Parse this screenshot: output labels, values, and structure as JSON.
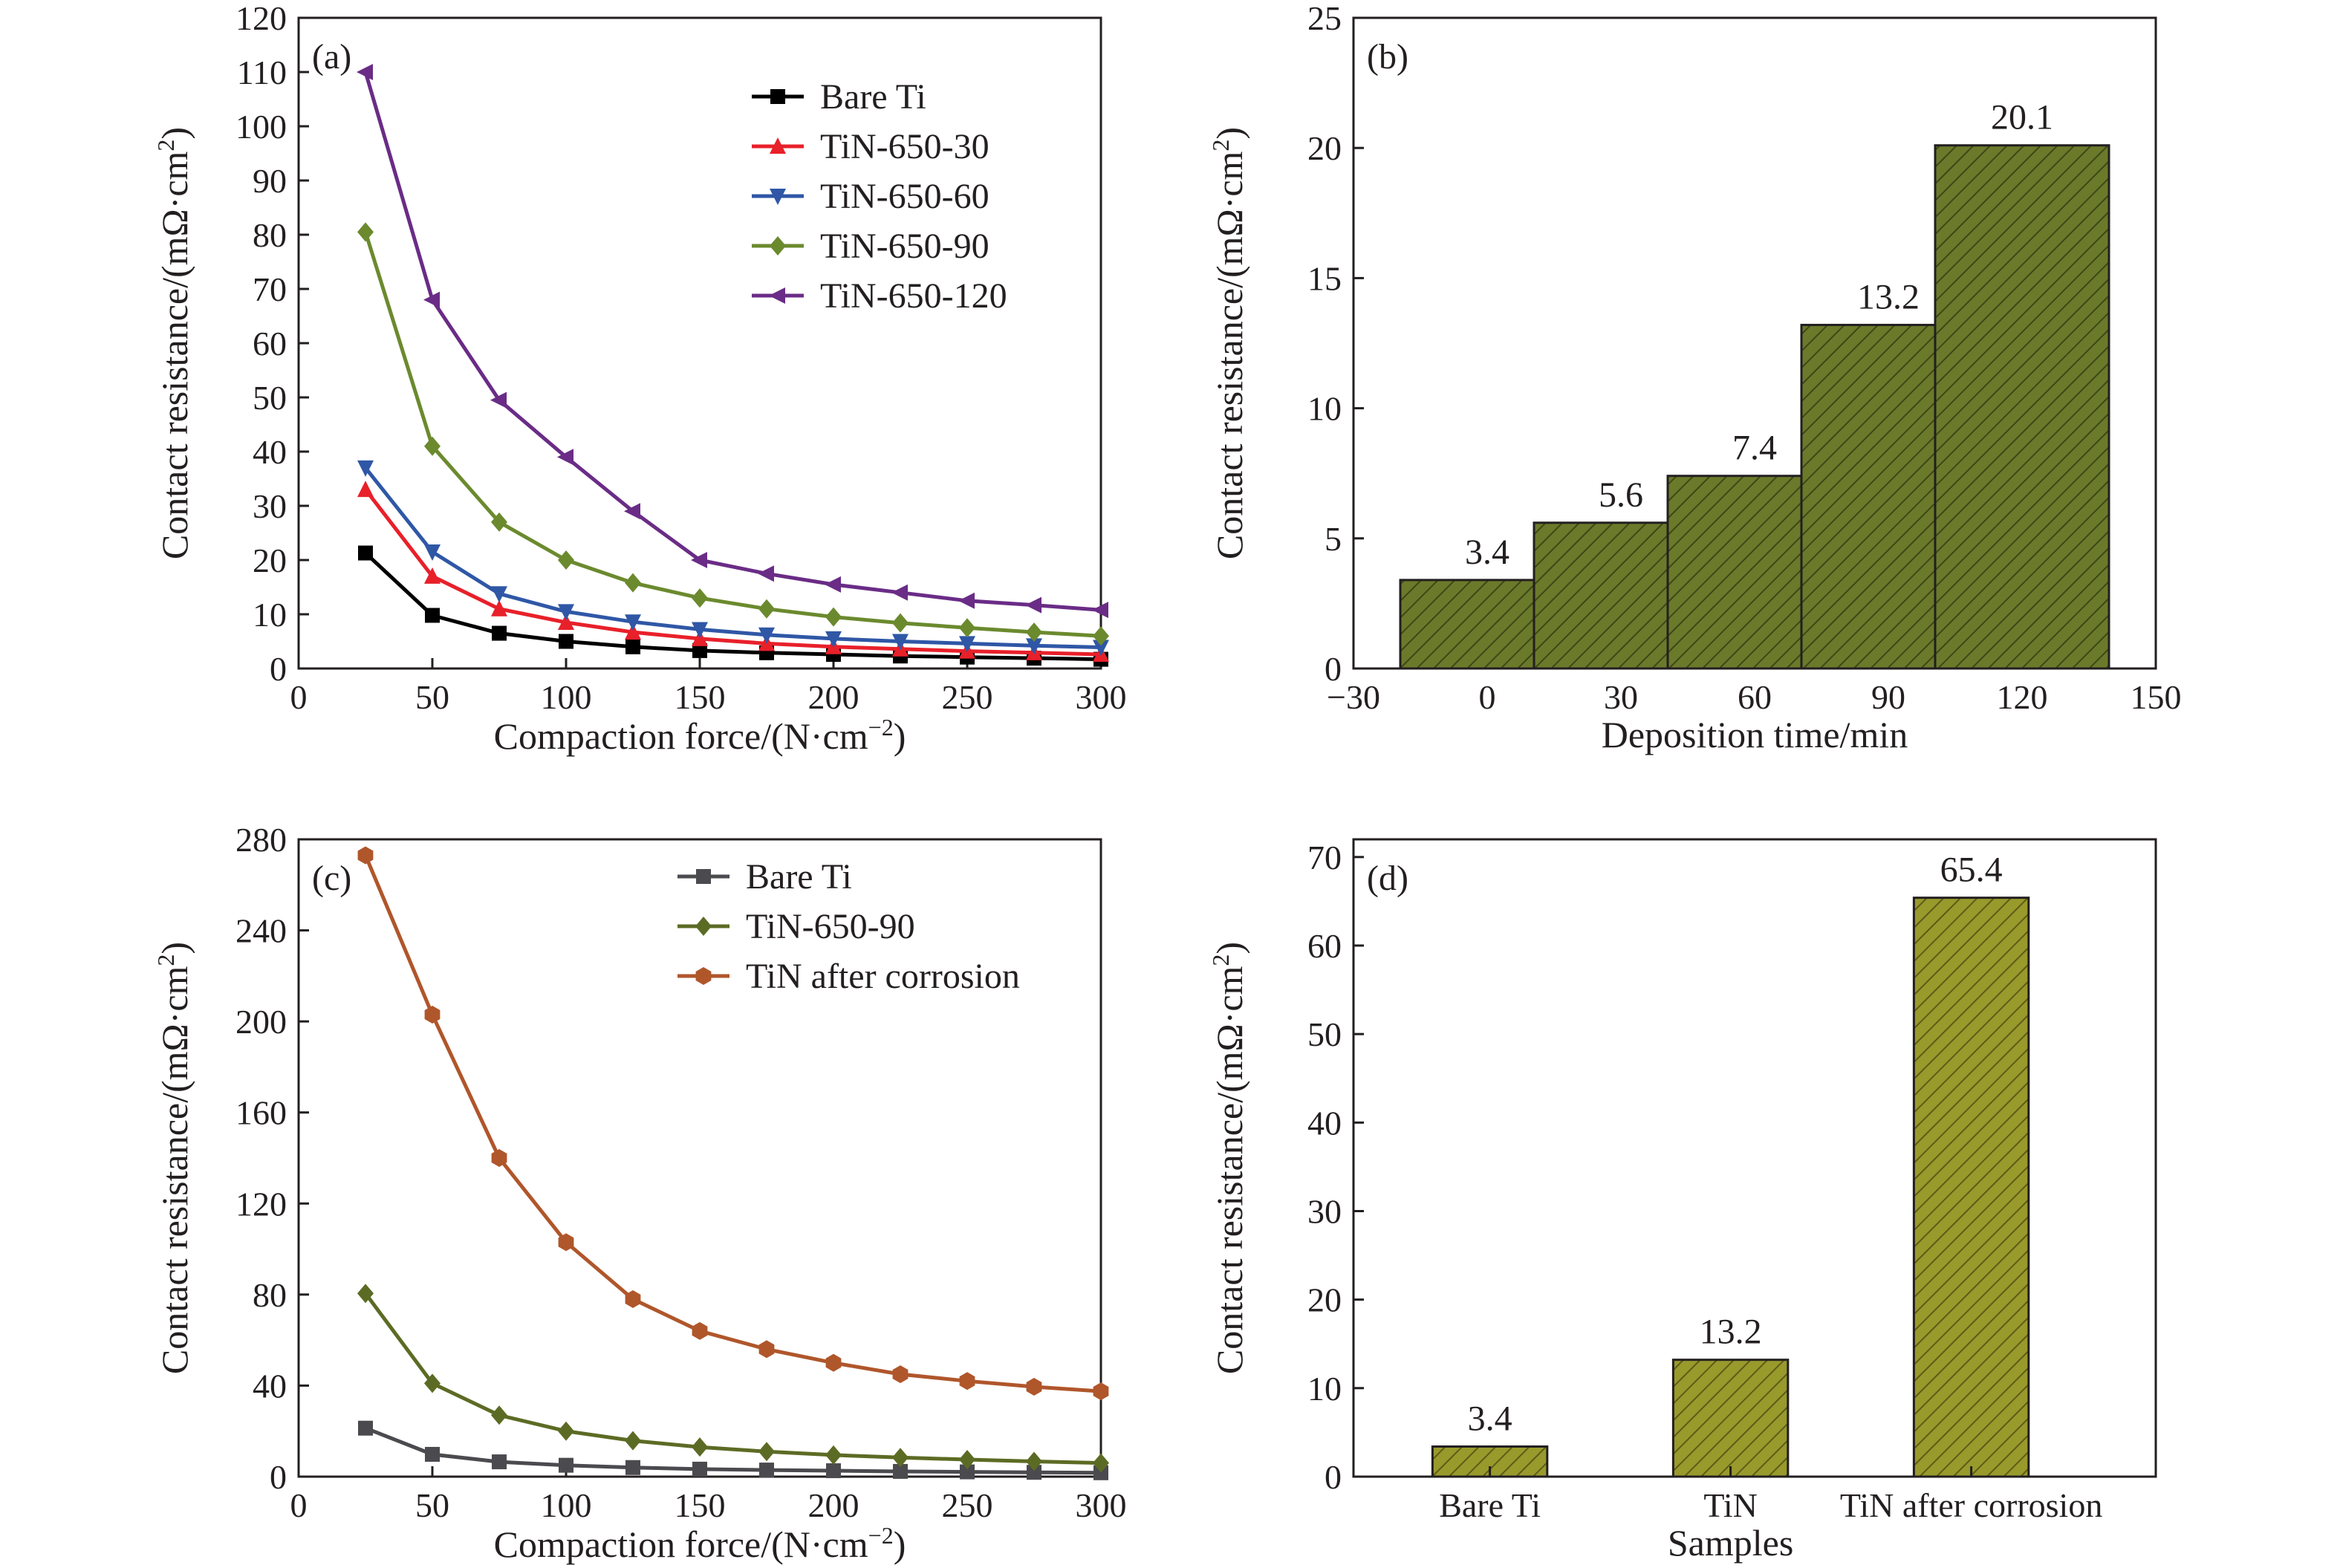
{
  "figure": {
    "panels": [
      "(a)",
      "(b)",
      "(c)",
      "(d)"
    ]
  },
  "chart_data": [
    {
      "id": "a",
      "type": "line",
      "panel_label": "(a)",
      "xlabel": "Compaction force/(N·cm",
      "xlabel_sup": "−2",
      "xlabel_end": ")",
      "ylabel": "Contact resistance/(mΩ·cm",
      "ylabel_sup": "2",
      "ylabel_end": ")",
      "xlim": [
        0,
        300
      ],
      "ylim": [
        0,
        120
      ],
      "xticks": [
        "0",
        "50",
        "100",
        "150",
        "200",
        "250",
        "300"
      ],
      "yticks": [
        "0",
        "10",
        "20",
        "30",
        "40",
        "50",
        "60",
        "70",
        "80",
        "90",
        "100",
        "110",
        "120"
      ],
      "legend_position": "top-right",
      "x": [
        25,
        50,
        75,
        100,
        125,
        150,
        175,
        200,
        225,
        250,
        275,
        300
      ],
      "series": [
        {
          "name": "Bare Ti",
          "color": "#000000",
          "marker": "square",
          "values": [
            21.3,
            9.8,
            6.5,
            5.0,
            4.0,
            3.3,
            2.9,
            2.6,
            2.3,
            2.1,
            1.9,
            1.7
          ]
        },
        {
          "name": "TiN-650-30",
          "color": "#e8202a",
          "marker": "triangle-up",
          "values": [
            33.0,
            17.0,
            11.0,
            8.5,
            6.7,
            5.5,
            4.6,
            4.0,
            3.6,
            3.2,
            2.9,
            2.6
          ]
        },
        {
          "name": "TiN-650-60",
          "color": "#2f57a6",
          "marker": "triangle-down",
          "values": [
            37.0,
            21.5,
            13.8,
            10.5,
            8.6,
            7.2,
            6.2,
            5.5,
            5.0,
            4.6,
            4.2,
            3.9
          ]
        },
        {
          "name": "TiN-650-90",
          "color": "#6b8a2e",
          "marker": "diamond",
          "values": [
            80.5,
            41.0,
            27.0,
            20.0,
            15.8,
            13.0,
            11.0,
            9.5,
            8.4,
            7.5,
            6.7,
            6.0
          ]
        },
        {
          "name": "TiN-650-120",
          "color": "#6a2c86",
          "marker": "triangle-left",
          "values": [
            110.0,
            68.0,
            49.5,
            39.0,
            29.0,
            20.0,
            17.5,
            15.5,
            14.0,
            12.5,
            11.7,
            10.8
          ]
        }
      ]
    },
    {
      "id": "b",
      "type": "bar",
      "panel_label": "(b)",
      "xlabel": "Deposition time/min",
      "ylabel": "Contact resistance/(mΩ·cm",
      "ylabel_sup": "2",
      "ylabel_end": ")",
      "xlim": [
        -30,
        150
      ],
      "ylim": [
        0,
        25
      ],
      "xticks": [
        "−30",
        "0",
        "30",
        "60",
        "90",
        "120",
        "150"
      ],
      "yticks": [
        "0",
        "5",
        "10",
        "15",
        "20",
        "25"
      ],
      "bar_color": "#6b7a2a",
      "x": [
        0,
        30,
        60,
        90,
        120
      ],
      "values": [
        3.4,
        5.6,
        7.4,
        13.2,
        20.1
      ],
      "labels": [
        "3.4",
        "5.6",
        "7.4",
        "13.2",
        "20.1"
      ]
    },
    {
      "id": "c",
      "type": "line",
      "panel_label": "(c)",
      "xlabel": "Compaction force/(N·cm",
      "xlabel_sup": "−2",
      "xlabel_end": ")",
      "ylabel": "Contact resistance/(mΩ·cm",
      "ylabel_sup": "2",
      "ylabel_end": ")",
      "xlim": [
        0,
        300
      ],
      "ylim": [
        0,
        280
      ],
      "xticks": [
        "0",
        "50",
        "100",
        "150",
        "200",
        "250",
        "300"
      ],
      "yticks": [
        "0",
        "40",
        "80",
        "120",
        "160",
        "200",
        "240",
        "280"
      ],
      "legend_position": "top-right",
      "x": [
        25,
        50,
        75,
        100,
        125,
        150,
        175,
        200,
        225,
        250,
        275,
        300
      ],
      "series": [
        {
          "name": "Bare Ti",
          "color": "#4a4a4f",
          "marker": "square",
          "values": [
            21.3,
            9.8,
            6.5,
            5.0,
            4.0,
            3.3,
            2.9,
            2.6,
            2.3,
            2.1,
            1.9,
            1.7
          ]
        },
        {
          "name": "TiN-650-90",
          "color": "#5c6b24",
          "marker": "diamond",
          "values": [
            80.5,
            41.0,
            27.0,
            20.0,
            15.8,
            13.0,
            11.0,
            9.5,
            8.4,
            7.5,
            6.7,
            6.0
          ]
        },
        {
          "name": "TiN after corrosion",
          "color": "#b0562b",
          "marker": "hexagon",
          "values": [
            273.0,
            203.0,
            140.0,
            103.0,
            78.0,
            64.0,
            56.0,
            50.0,
            45.0,
            42.0,
            39.5,
            37.5
          ]
        }
      ]
    },
    {
      "id": "d",
      "type": "bar",
      "panel_label": "(d)",
      "xlabel": "Samples",
      "ylabel": "Contact resistance/(mΩ·cm",
      "ylabel_sup": "2",
      "ylabel_end": ")",
      "ylim": [
        0,
        72
      ],
      "yticks": [
        "0",
        "10",
        "20",
        "30",
        "40",
        "50",
        "60",
        "70"
      ],
      "bar_color": "#999a2c",
      "categories": [
        "Bare Ti",
        "TiN",
        "TiN after corrosion"
      ],
      "values": [
        3.4,
        13.2,
        65.4
      ],
      "labels": [
        "3.4",
        "13.2",
        "65.4"
      ]
    }
  ]
}
